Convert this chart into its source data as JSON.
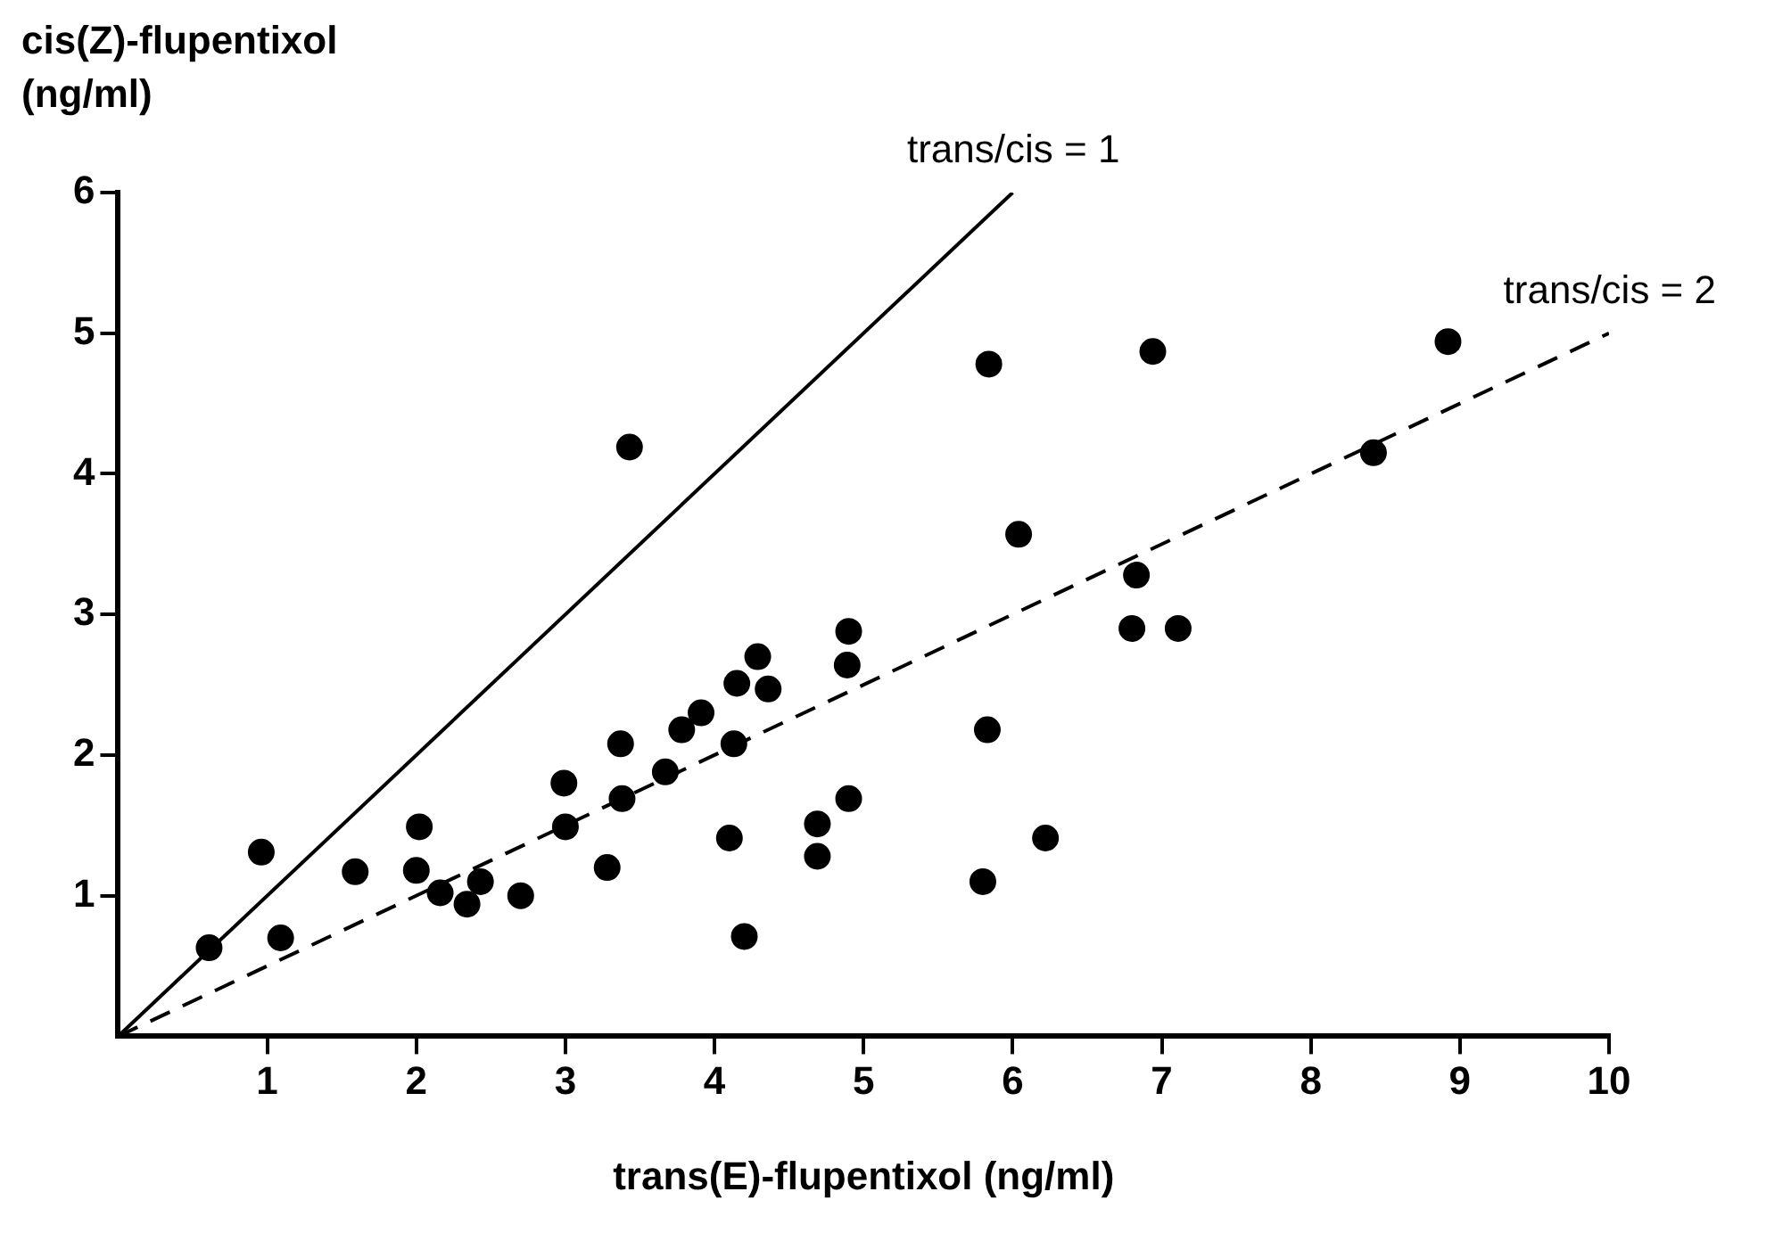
{
  "chart_data": {
    "type": "scatter",
    "xlabel": "trans(E)-flupentixol (ng/ml)",
    "ylabel": "cis(Z)-flupentixol (ng/ml)",
    "xlim": [
      0,
      10
    ],
    "ylim": [
      0,
      6
    ],
    "xticks": [
      1,
      2,
      3,
      4,
      5,
      6,
      7,
      8,
      9,
      10
    ],
    "yticks": [
      1,
      2,
      3,
      4,
      5,
      6
    ],
    "series": [
      {
        "type": "scatter",
        "marker": "circle",
        "color": "#000000",
        "x": [
          0.61,
          0.96,
          1.09,
          1.59,
          2.02,
          2.0,
          2.16,
          2.34,
          2.43,
          2.7,
          2.99,
          3.0,
          3.28,
          3.37,
          3.38,
          3.43,
          3.67,
          3.78,
          3.91,
          4.13,
          4.1,
          4.15,
          4.29,
          4.36,
          4.2,
          4.69,
          4.69,
          4.9,
          4.89,
          4.9,
          5.83,
          5.8,
          5.84,
          6.04,
          6.22,
          6.8,
          6.83,
          6.94,
          7.11,
          8.42,
          8.92
        ],
        "values": [
          0.63,
          1.31,
          0.7,
          1.17,
          1.49,
          1.18,
          1.02,
          0.94,
          1.1,
          1.0,
          1.8,
          1.49,
          1.2,
          2.08,
          1.69,
          4.19,
          1.88,
          2.18,
          2.3,
          2.08,
          1.41,
          2.51,
          2.7,
          2.47,
          0.71,
          1.51,
          1.28,
          2.88,
          2.64,
          1.69,
          2.18,
          1.1,
          4.78,
          3.57,
          1.41,
          2.9,
          3.28,
          4.87,
          2.9,
          4.15,
          4.94
        ]
      },
      {
        "type": "line",
        "name": "trans/cis = 1",
        "color": "#000000",
        "line_style": "solid",
        "x": [
          0,
          6
        ],
        "values": [
          0,
          6
        ]
      },
      {
        "type": "line",
        "name": "trans/cis = 2",
        "color": "#000000",
        "line_style": "dashed",
        "x": [
          0,
          10
        ],
        "values": [
          0,
          5
        ]
      }
    ]
  }
}
